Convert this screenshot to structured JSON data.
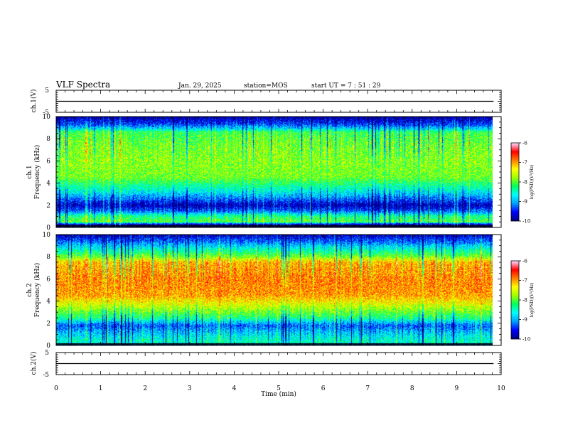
{
  "header": {
    "title": "VLF Spectra",
    "date": "Jan. 29, 2025",
    "station": "station=MOS",
    "start_ut": "start UT =  7 : 51 : 29"
  },
  "chart_data": [
    {
      "type": "line",
      "name": "waveform-ch1",
      "ylabel": "ch.1(V)",
      "ylim": [
        -5,
        5
      ],
      "yticks": [
        "5",
        "-5"
      ],
      "xlim": [
        0,
        10
      ],
      "baseline_value": 0
    },
    {
      "type": "heatmap",
      "name": "spectrogram-ch1",
      "ylabel": "ch.1\nFrequency (kHz)",
      "ylim": [
        0,
        10
      ],
      "yticks": [
        "0",
        "2",
        "4",
        "6",
        "8",
        "10"
      ],
      "xlim": [
        0,
        10
      ],
      "data_end_min": 9.83,
      "colorbar": {
        "label": "log(PSD)(V²/Hz)",
        "range": [
          -10,
          -6
        ],
        "ticks": [
          "-6",
          "-7",
          "-8",
          "-9",
          "-10"
        ]
      },
      "intensity_profile": [
        {
          "f": 0.0,
          "v": -9.6
        },
        {
          "f": 0.3,
          "v": -9.7
        },
        {
          "f": 0.5,
          "v": -8.0
        },
        {
          "f": 1.0,
          "v": -8.3
        },
        {
          "f": 1.5,
          "v": -9.3
        },
        {
          "f": 2.0,
          "v": -9.8
        },
        {
          "f": 2.5,
          "v": -9.3
        },
        {
          "f": 3.2,
          "v": -8.7
        },
        {
          "f": 4.5,
          "v": -7.9
        },
        {
          "f": 6.0,
          "v": -7.8
        },
        {
          "f": 7.5,
          "v": -7.9
        },
        {
          "f": 8.6,
          "v": -8.1
        },
        {
          "f": 8.9,
          "v": -8.8
        },
        {
          "f": 9.3,
          "v": -9.4
        },
        {
          "f": 10.0,
          "v": -9.9
        }
      ]
    },
    {
      "type": "heatmap",
      "name": "spectrogram-ch2",
      "ylabel": "ch.2\nFrequency (kHz)",
      "ylim": [
        0,
        10
      ],
      "yticks": [
        "0",
        "2",
        "4",
        "6",
        "8",
        "10"
      ],
      "xlim": [
        0,
        10
      ],
      "data_end_min": 9.83,
      "colorbar": {
        "label": "log(PSD)(V²/Hz)",
        "range": [
          -10,
          -6
        ],
        "ticks": [
          "-6",
          "-7",
          "-8",
          "-9",
          "-10"
        ]
      },
      "intensity_profile": [
        {
          "f": 0.0,
          "v": -9.3
        },
        {
          "f": 0.3,
          "v": -8.5
        },
        {
          "f": 1.0,
          "v": -8.8
        },
        {
          "f": 1.8,
          "v": -9.3
        },
        {
          "f": 2.5,
          "v": -8.3
        },
        {
          "f": 3.5,
          "v": -7.6
        },
        {
          "f": 4.5,
          "v": -7.0
        },
        {
          "f": 6.0,
          "v": -6.9
        },
        {
          "f": 7.5,
          "v": -7.1
        },
        {
          "f": 8.0,
          "v": -7.9
        },
        {
          "f": 8.7,
          "v": -8.6
        },
        {
          "f": 9.3,
          "v": -9.2
        },
        {
          "f": 10.0,
          "v": -9.8
        }
      ]
    },
    {
      "type": "line",
      "name": "waveform-ch2",
      "ylabel": "ch.2(V)",
      "ylim": [
        -5,
        5
      ],
      "yticks": [
        "5",
        "-5"
      ],
      "xlim": [
        0,
        10
      ],
      "baseline_value": 0
    }
  ],
  "x_axis": {
    "label": "Time (min)",
    "ticks": [
      "0",
      "1",
      "2",
      "3",
      "4",
      "5",
      "6",
      "7",
      "8",
      "9",
      "10"
    ]
  },
  "colors": {
    "colormap": [
      "#00007f",
      "#0000ff",
      "#00a0ff",
      "#00ffff",
      "#00ff60",
      "#a0ff00",
      "#ffff00",
      "#ff8000",
      "#ff0000",
      "#ffd8ff"
    ]
  }
}
